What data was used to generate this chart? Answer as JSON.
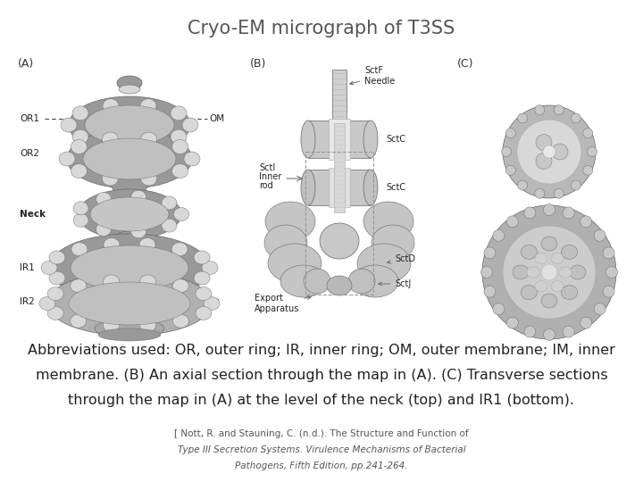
{
  "title": "Cryo-EM micrograph of T3SS",
  "title_fontsize": 15,
  "title_color": "#555555",
  "background_color": "#ffffff",
  "caption_lines": [
    "Abbreviations used: OR, outer ring; IR, inner ring; OM, outer membrane; IM, inner",
    "membrane. (B) An axial section through the map in (A). (C) Transverse sections",
    "through the map in (A) at the level of the neck (top) and IR1 (bottom)."
  ],
  "caption_fontsize": 11.5,
  "caption_color": "#222222",
  "footnote_lines": [
    "[ Nott, R. and Stauning, C. (n.d.). The Structure and Function of",
    "Type III Secretion Systems. Virulence Mechanisms of Bacterial",
    "Pathogens, Fifth Edition, pp.241-264."
  ],
  "footnote_italic": [
    false,
    true,
    true
  ],
  "footnote_fontsize": 7.5,
  "footnote_color": "#555555",
  "struct_gray": "#aaaaaa",
  "struct_dark": "#666666",
  "struct_light": "#d8d8d8",
  "struct_mid": "#999999"
}
